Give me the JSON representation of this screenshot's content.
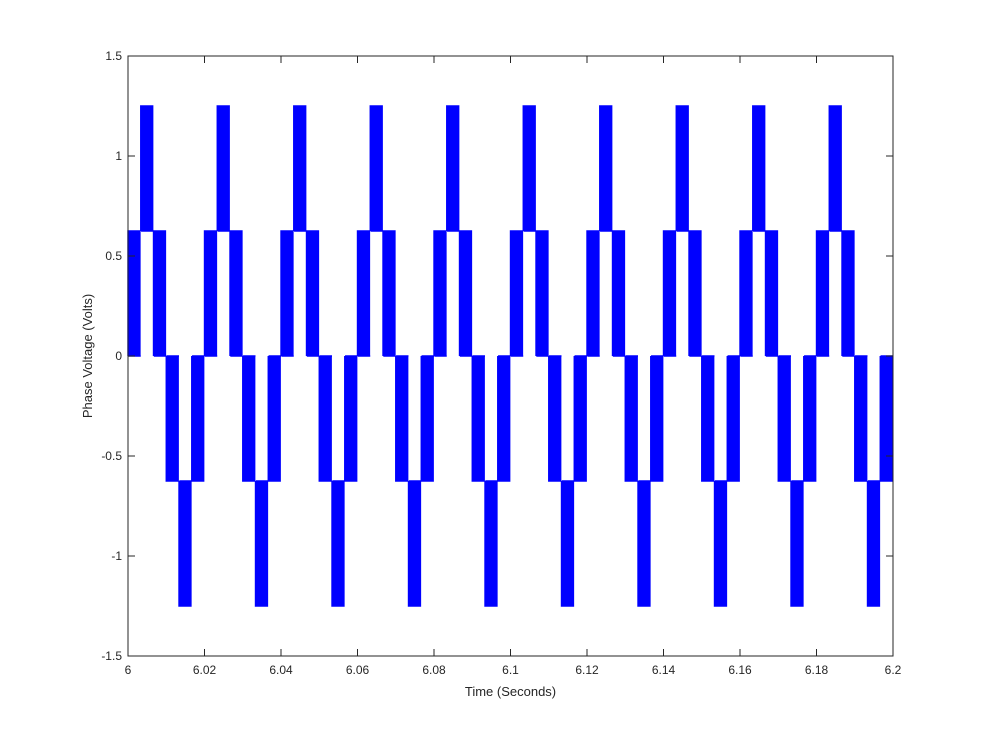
{
  "chart_data": {
    "type": "line",
    "title": "",
    "xlabel": "Time (Seconds)",
    "ylabel": "Phase Voltage (Volts)",
    "xlim": [
      6,
      6.2
    ],
    "ylim": [
      -1.5,
      1.5
    ],
    "xticks": [
      6,
      6.02,
      6.04,
      6.06,
      6.08,
      6.1,
      6.12,
      6.14,
      6.16,
      6.18,
      6.2
    ],
    "xtick_labels": [
      "6",
      "6.02",
      "6.04",
      "6.06",
      "6.08",
      "6.1",
      "6.12",
      "6.14",
      "6.16",
      "6.18",
      "6.2"
    ],
    "yticks": [
      -1.5,
      -1,
      -0.5,
      0,
      0.5,
      1,
      1.5
    ],
    "ytick_labels": [
      "-1.5",
      "-1",
      "-0.5",
      "0",
      "0.5",
      "1",
      "1.5"
    ],
    "grid": false,
    "series": [
      {
        "color": "#0000ff",
        "fundamental_period_s": 0.02,
        "levels": [
          0.625,
          1.25,
          0.625,
          -0.625,
          -1.25,
          -0.625
        ],
        "switching_frequency_hz": 2000,
        "start_time_s": 6.0,
        "end_time_s": 6.2
      }
    ]
  }
}
